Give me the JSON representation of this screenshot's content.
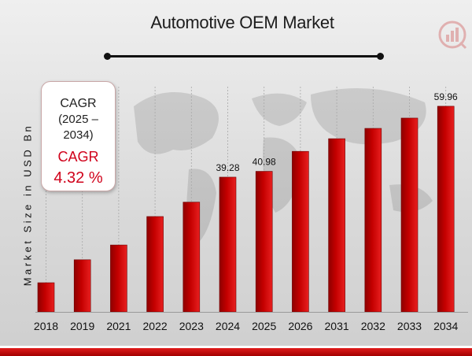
{
  "chart_data": {
    "type": "bar",
    "title": "Automotive OEM Market",
    "ylabel": "Market Size in USD Bn",
    "xlabel": "",
    "categories": [
      "2018",
      "2019",
      "2021",
      "2022",
      "2023",
      "2024",
      "2025",
      "2026",
      "2031",
      "2032",
      "2033",
      "2034"
    ],
    "values": [
      8.5,
      15.2,
      19.5,
      27.8,
      32.0,
      39.28,
      40.98,
      46.8,
      50.5,
      53.5,
      56.5,
      59.96
    ],
    "data_labels": {
      "5": "39.28",
      "6": "40.98",
      "11": "59.96"
    },
    "ylim": [
      0,
      62
    ],
    "grid": true,
    "bar_color": "#c40000"
  },
  "cagr_box": {
    "line1": "CAGR",
    "line2": "(2025 – 2034)",
    "line3": "CAGR",
    "line4": "4.32 %"
  }
}
